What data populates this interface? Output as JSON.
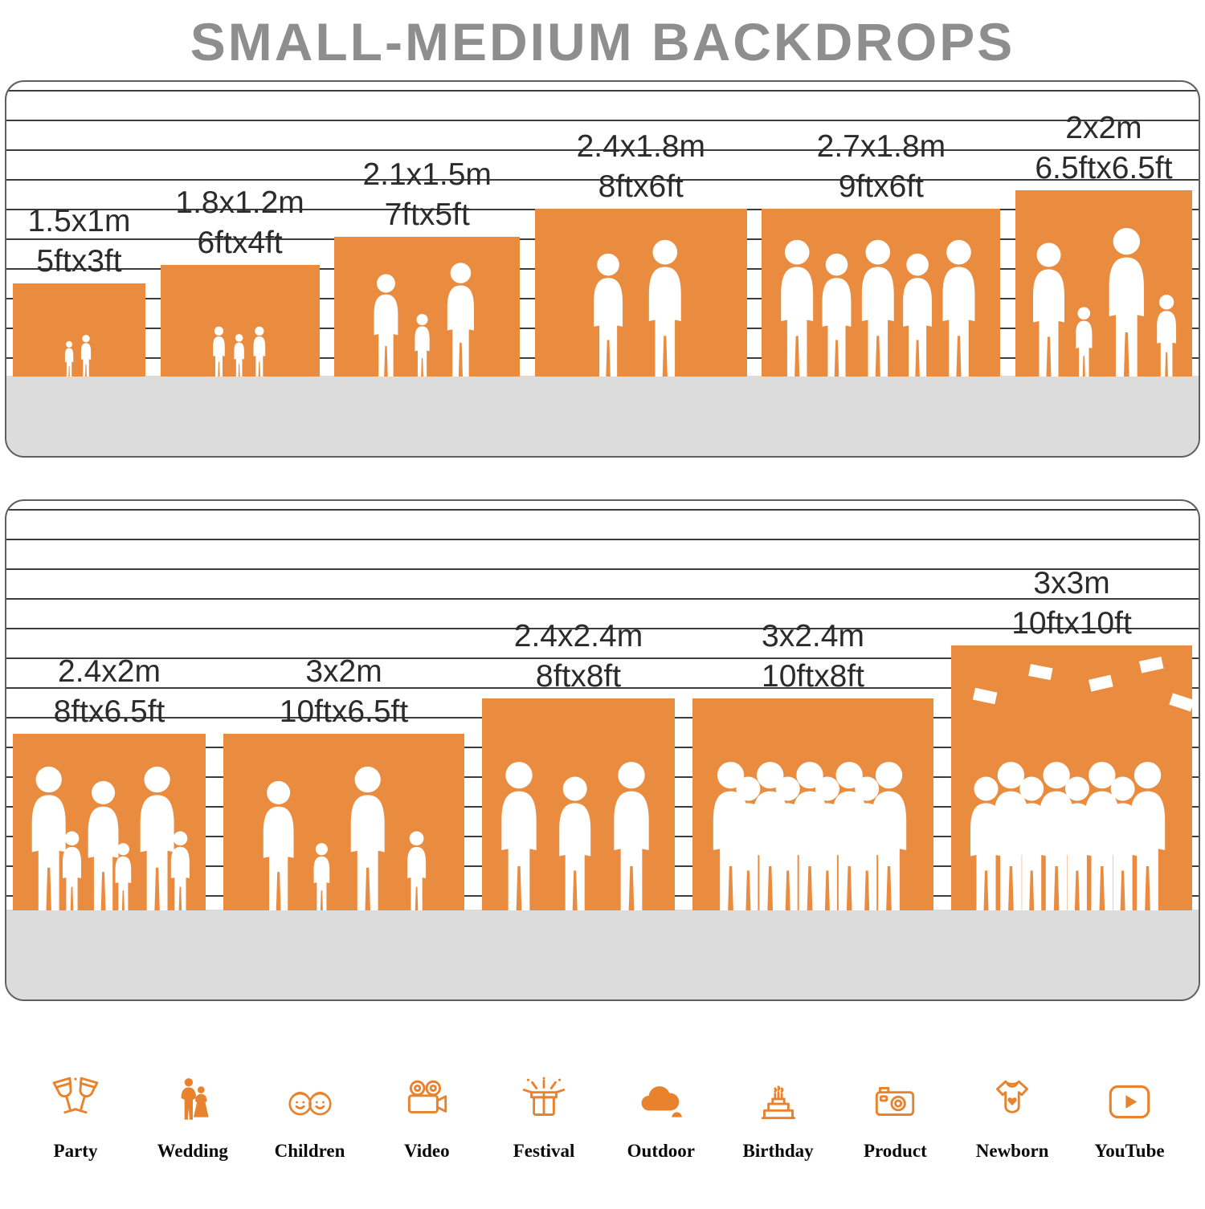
{
  "title": "SMALL-MEDIUM BACKDROPS",
  "colors": {
    "backdrop": "#EA8C3F",
    "floor": "#DCDCDC",
    "title": "#8E8E8E",
    "icon": "#E8822C",
    "label": "#2B2B2B"
  },
  "panels": [
    {
      "name": "small-backdrops",
      "backdrops": [
        {
          "metric": "1.5x1m",
          "imperial": "5ftx3ft",
          "scene": "kids-reading",
          "adults": 0,
          "children": 2
        },
        {
          "metric": "1.8x1.2m",
          "imperial": "6ftx4ft",
          "scene": "kids-running",
          "adults": 0,
          "children": 3
        },
        {
          "metric": "2.1x1.5m",
          "imperial": "7ftx5ft",
          "scene": "family-walk",
          "adults": 2,
          "children": 1
        },
        {
          "metric": "2.4x1.8m",
          "imperial": "8ftx6ft",
          "scene": "wedding-couple",
          "adults": 2,
          "children": 0
        },
        {
          "metric": "2.7x1.8m",
          "imperial": "9ftx6ft",
          "scene": "dancing-group",
          "adults": 5,
          "children": 0
        },
        {
          "metric": "2x2m",
          "imperial": "6.5ftx6.5ft",
          "scene": "couple-with-pets",
          "adults": 2,
          "children": 2
        }
      ]
    },
    {
      "name": "medium-backdrops",
      "backdrops": [
        {
          "metric": "2.4x2m",
          "imperial": "8ftx6.5ft",
          "scene": "family-group",
          "adults": 3,
          "children": 3
        },
        {
          "metric": "3x2m",
          "imperial": "10ftx6.5ft",
          "scene": "family-play",
          "adults": 2,
          "children": 2
        },
        {
          "metric": "2.4x2.4m",
          "imperial": "8ftx8ft",
          "scene": "friends",
          "adults": 3,
          "children": 0
        },
        {
          "metric": "3x2.4m",
          "imperial": "10ftx8ft",
          "scene": "party-crowd",
          "adults": 9,
          "children": 0
        },
        {
          "metric": "3x3m",
          "imperial": "10ftx10ft",
          "scene": "graduation",
          "adults": 8,
          "children": 0
        }
      ]
    }
  ],
  "categories": [
    {
      "label": "Party",
      "icon": "party-icon"
    },
    {
      "label": "Wedding",
      "icon": "wedding-icon"
    },
    {
      "label": "Children",
      "icon": "children-icon"
    },
    {
      "label": "Video",
      "icon": "video-icon"
    },
    {
      "label": "Festival",
      "icon": "festival-icon"
    },
    {
      "label": "Outdoor",
      "icon": "outdoor-icon"
    },
    {
      "label": "Birthday",
      "icon": "birthday-icon"
    },
    {
      "label": "Product",
      "icon": "product-icon"
    },
    {
      "label": "Newborn",
      "icon": "newborn-icon"
    },
    {
      "label": "YouTube",
      "icon": "youtube-icon"
    }
  ]
}
